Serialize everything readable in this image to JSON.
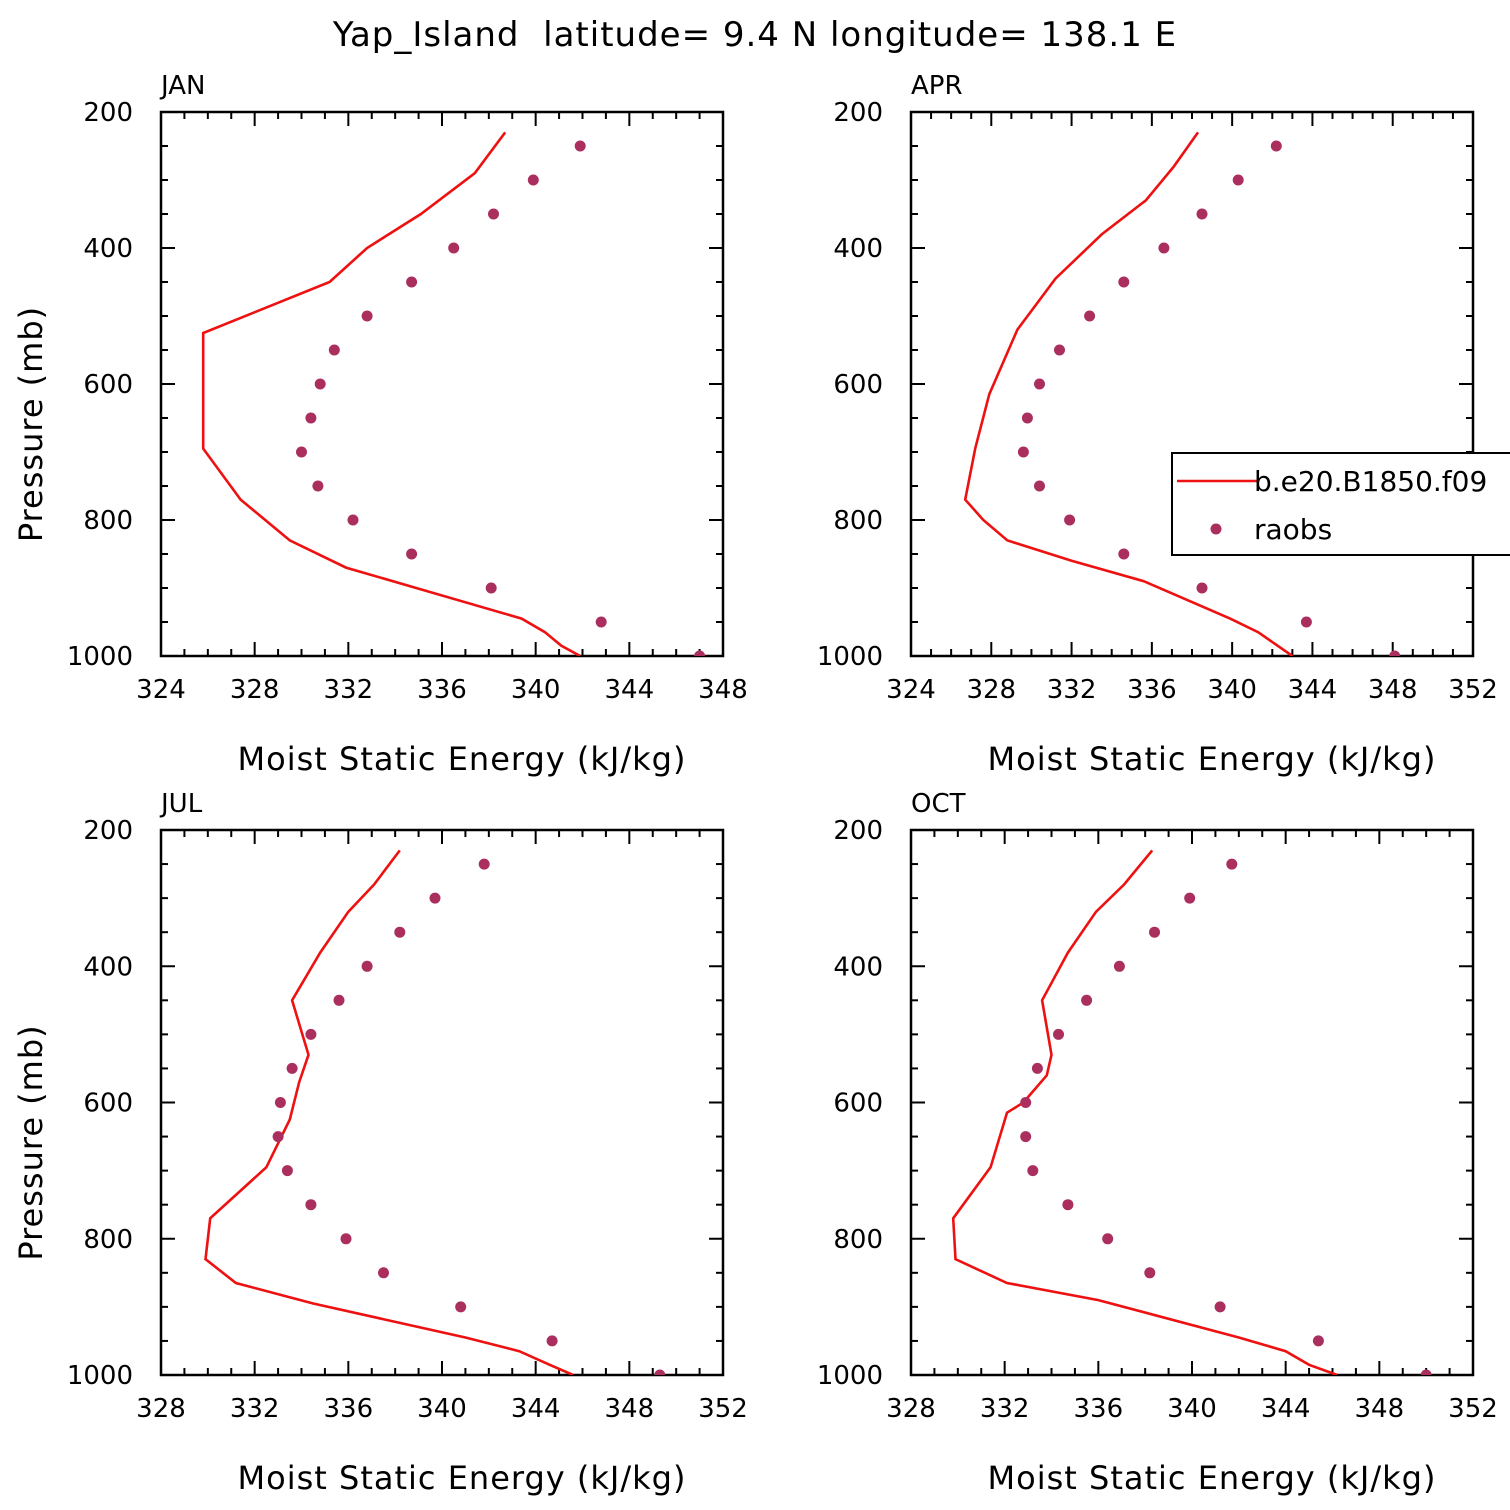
{
  "title": "Yap_Island  latitude= 9.4 N longitude= 138.1 E",
  "colors": {
    "model": "#ee1111",
    "obs": "#aa2e5e",
    "frame": "#000000"
  },
  "legend": {
    "placement": "inside APR panel, right-center",
    "entries": [
      {
        "label": "b.e20.B1850.f09",
        "style": "line",
        "color": "#ee1111"
      },
      {
        "label": "raobs",
        "style": "marker",
        "color": "#aa2e5e"
      }
    ]
  },
  "chart_data": [
    {
      "type": "line",
      "panel": "JAN",
      "xlabel": "Moist Static Energy (kJ/kg)",
      "ylabel": "Pressure (mb)",
      "xlim": [
        324,
        348
      ],
      "ylim": [
        1000,
        200
      ],
      "xticks": [
        324,
        328,
        332,
        336,
        340,
        344,
        348
      ],
      "yticks": [
        200,
        400,
        600,
        800,
        1000
      ],
      "series": [
        {
          "name": "b.e20.B1850.f09",
          "kind": "line",
          "x": [
            338.7,
            337.4,
            335.1,
            332.8,
            331.2,
            325.8,
            325.8,
            327.4,
            329.5,
            331.9,
            334.9,
            339.4,
            340.4,
            341.1,
            341.9
          ],
          "y": [
            230,
            290,
            350,
            400,
            450,
            525,
            695,
            770,
            830,
            870,
            900,
            945,
            965,
            985,
            1000
          ]
        },
        {
          "name": "raobs",
          "kind": "scatter",
          "x": [
            341.9,
            339.9,
            338.2,
            336.5,
            334.7,
            332.8,
            331.4,
            330.8,
            330.4,
            330.0,
            330.7,
            332.2,
            334.7,
            338.1,
            342.8,
            347.0
          ],
          "y": [
            250,
            300,
            350,
            400,
            450,
            500,
            550,
            600,
            650,
            700,
            750,
            800,
            850,
            900,
            950,
            1000
          ]
        }
      ]
    },
    {
      "type": "line",
      "panel": "APR",
      "xlabel": "Moist Static Energy (kJ/kg)",
      "ylabel": "",
      "xlim": [
        324,
        352
      ],
      "ylim": [
        1000,
        200
      ],
      "xticks": [
        324,
        328,
        332,
        336,
        340,
        344,
        348,
        352
      ],
      "yticks": [
        200,
        400,
        600,
        800,
        1000
      ],
      "series": [
        {
          "name": "b.e20.B1850.f09",
          "kind": "line",
          "x": [
            338.3,
            337.1,
            335.7,
            333.5,
            331.2,
            329.3,
            327.9,
            327.2,
            326.7,
            327.6,
            328.8,
            332.0,
            335.6,
            339.9,
            341.3,
            343.0
          ],
          "y": [
            230,
            280,
            330,
            380,
            445,
            520,
            615,
            695,
            770,
            800,
            830,
            860,
            890,
            945,
            965,
            1000
          ]
        },
        {
          "name": "raobs",
          "kind": "scatter",
          "x": [
            342.2,
            340.3,
            338.5,
            336.6,
            334.6,
            332.9,
            331.4,
            330.4,
            329.8,
            329.6,
            330.4,
            331.9,
            334.6,
            338.5,
            343.7,
            348.1
          ],
          "y": [
            250,
            300,
            350,
            400,
            450,
            500,
            550,
            600,
            650,
            700,
            750,
            800,
            850,
            900,
            950,
            1000
          ]
        }
      ]
    },
    {
      "type": "line",
      "panel": "JUL",
      "xlabel": "Moist Static Energy (kJ/kg)",
      "ylabel": "Pressure (mb)",
      "xlim": [
        328,
        352
      ],
      "ylim": [
        1000,
        200
      ],
      "xticks": [
        328,
        332,
        336,
        340,
        344,
        348,
        352
      ],
      "yticks": [
        200,
        400,
        600,
        800,
        1000
      ],
      "series": [
        {
          "name": "b.e20.B1850.f09",
          "kind": "line",
          "x": [
            338.2,
            337.1,
            336.0,
            334.8,
            333.6,
            334.3,
            333.9,
            333.5,
            332.5,
            330.1,
            329.9,
            331.2,
            334.5,
            341.0,
            343.3,
            344.6,
            345.6
          ],
          "y": [
            230,
            280,
            320,
            380,
            450,
            530,
            570,
            625,
            695,
            770,
            830,
            865,
            895,
            945,
            965,
            985,
            1000
          ]
        },
        {
          "name": "raobs",
          "kind": "scatter",
          "x": [
            341.8,
            339.7,
            338.2,
            336.8,
            335.6,
            334.4,
            333.6,
            333.1,
            333.0,
            333.4,
            334.4,
            335.9,
            337.5,
            340.8,
            344.7,
            349.3
          ],
          "y": [
            250,
            300,
            350,
            400,
            450,
            500,
            550,
            600,
            650,
            700,
            750,
            800,
            850,
            900,
            950,
            1000
          ]
        }
      ]
    },
    {
      "type": "line",
      "panel": "OCT",
      "xlabel": "Moist Static Energy (kJ/kg)",
      "ylabel": "",
      "xlim": [
        328,
        352
      ],
      "ylim": [
        1000,
        200
      ],
      "xticks": [
        328,
        332,
        336,
        340,
        344,
        348,
        352
      ],
      "yticks": [
        200,
        400,
        600,
        800,
        1000
      ],
      "series": [
        {
          "name": "b.e20.B1850.f09",
          "kind": "line",
          "x": [
            338.3,
            337.1,
            335.9,
            334.7,
            333.6,
            334.0,
            333.8,
            332.8,
            332.1,
            331.4,
            329.8,
            329.9,
            332.1,
            336.0,
            342.0,
            344.0,
            345.0,
            346.2
          ],
          "y": [
            230,
            280,
            320,
            380,
            450,
            530,
            560,
            600,
            615,
            695,
            770,
            830,
            865,
            890,
            945,
            965,
            985,
            1000
          ]
        },
        {
          "name": "raobs",
          "kind": "scatter",
          "x": [
            341.7,
            339.9,
            338.4,
            336.9,
            335.5,
            334.3,
            333.4,
            332.9,
            332.9,
            333.2,
            334.7,
            336.4,
            338.2,
            341.2,
            345.4,
            350.0
          ],
          "y": [
            250,
            300,
            350,
            400,
            450,
            500,
            550,
            600,
            650,
            700,
            750,
            800,
            850,
            900,
            950,
            1000
          ]
        }
      ]
    }
  ]
}
